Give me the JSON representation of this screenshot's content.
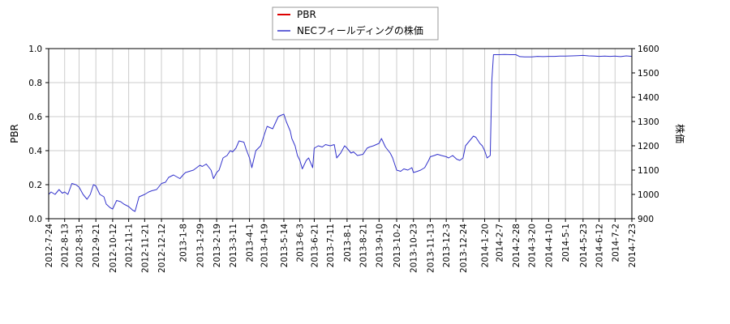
{
  "chart_data": {
    "type": "line",
    "legend": {
      "placement": "top-center",
      "entries": [
        {
          "label": "PBR",
          "color": "#dd0000"
        },
        {
          "label": "NECフィールディングの株価",
          "color": "#3333cc"
        }
      ]
    },
    "y_left": {
      "label": "PBR",
      "range": [
        0.0,
        1.0
      ],
      "ticks": [
        "0.0",
        "0.2",
        "0.4",
        "0.6",
        "0.8",
        "1.0"
      ]
    },
    "y_right": {
      "label": "株価",
      "range": [
        900,
        1600
      ],
      "ticks": [
        "900",
        "1000",
        "1100",
        "1200",
        "1300",
        "1400",
        "1500",
        "1600"
      ]
    },
    "x": {
      "range": [
        "2012-07-24",
        "2014-07-23"
      ],
      "ticks": [
        "2012-7-24",
        "2012-8-13",
        "2012-8-31",
        "2012-9-21",
        "2012-10-12",
        "2012-11-1",
        "2012-11-21",
        "2012-12-12",
        "2013-1-8",
        "2013-1-29",
        "2013-2-19",
        "2013-3-11",
        "2013-4-1",
        "2013-4-19",
        "2013-5-14",
        "2013-6-3",
        "2013-6-21",
        "2013-7-11",
        "2013-8-1",
        "2013-8-21",
        "2013-9-10",
        "2013-10-2",
        "2013-10-23",
        "2013-11-13",
        "2013-12-3",
        "2013-12-24",
        "2014-1-20",
        "2014-2-7",
        "2014-2-28",
        "2014-3-20",
        "2014-4-10",
        "2014-5-1",
        "2014-5-23",
        "2014-6-12",
        "2014-7-2",
        "2014-7-23"
      ]
    },
    "grid": true,
    "series": [
      {
        "name": "PBR",
        "axis": "left",
        "color": "#dd0000",
        "values": []
      },
      {
        "name": "NECフィールディングの株価",
        "axis": "right",
        "color": "#3333cc",
        "points": [
          [
            "2012-07-24",
            1000
          ],
          [
            "2012-07-27",
            1010
          ],
          [
            "2012-08-01",
            1000
          ],
          [
            "2012-08-06",
            1020
          ],
          [
            "2012-08-10",
            1005
          ],
          [
            "2012-08-13",
            1010
          ],
          [
            "2012-08-17",
            1000
          ],
          [
            "2012-08-22",
            1045
          ],
          [
            "2012-08-27",
            1040
          ],
          [
            "2012-08-31",
            1030
          ],
          [
            "2012-09-05",
            1000
          ],
          [
            "2012-09-10",
            980
          ],
          [
            "2012-09-14",
            1000
          ],
          [
            "2012-09-18",
            1040
          ],
          [
            "2012-09-21",
            1035
          ],
          [
            "2012-09-26",
            1000
          ],
          [
            "2012-10-01",
            990
          ],
          [
            "2012-10-04",
            960
          ],
          [
            "2012-10-09",
            945
          ],
          [
            "2012-10-12",
            940
          ],
          [
            "2012-10-17",
            975
          ],
          [
            "2012-10-22",
            970
          ],
          [
            "2012-10-26",
            960
          ],
          [
            "2012-11-01",
            950
          ],
          [
            "2012-11-06",
            935
          ],
          [
            "2012-11-09",
            930
          ],
          [
            "2012-11-14",
            990
          ],
          [
            "2012-11-21",
            1000
          ],
          [
            "2012-11-26",
            1010
          ],
          [
            "2012-11-30",
            1015
          ],
          [
            "2012-12-06",
            1020
          ],
          [
            "2012-12-12",
            1045
          ],
          [
            "2012-12-17",
            1050
          ],
          [
            "2012-12-21",
            1070
          ],
          [
            "2012-12-27",
            1080
          ],
          [
            "2013-01-04",
            1065
          ],
          [
            "2013-01-08",
            1080
          ],
          [
            "2013-01-11",
            1090
          ],
          [
            "2013-01-16",
            1095
          ],
          [
            "2013-01-21",
            1100
          ],
          [
            "2013-01-25",
            1110
          ],
          [
            "2013-01-29",
            1120
          ],
          [
            "2013-02-01",
            1115
          ],
          [
            "2013-02-06",
            1125
          ],
          [
            "2013-02-12",
            1100
          ],
          [
            "2013-02-15",
            1065
          ],
          [
            "2013-02-19",
            1090
          ],
          [
            "2013-02-22",
            1100
          ],
          [
            "2013-02-27",
            1150
          ],
          [
            "2013-03-04",
            1160
          ],
          [
            "2013-03-08",
            1180
          ],
          [
            "2013-03-11",
            1175
          ],
          [
            "2013-03-15",
            1190
          ],
          [
            "2013-03-19",
            1220
          ],
          [
            "2013-03-25",
            1215
          ],
          [
            "2013-03-28",
            1185
          ],
          [
            "2013-04-01",
            1150
          ],
          [
            "2013-04-04",
            1110
          ],
          [
            "2013-04-09",
            1180
          ],
          [
            "2013-04-15",
            1200
          ],
          [
            "2013-04-19",
            1240
          ],
          [
            "2013-04-23",
            1280
          ],
          [
            "2013-04-30",
            1270
          ],
          [
            "2013-05-07",
            1320
          ],
          [
            "2013-05-10",
            1325
          ],
          [
            "2013-05-14",
            1330
          ],
          [
            "2013-05-17",
            1300
          ],
          [
            "2013-05-22",
            1260
          ],
          [
            "2013-05-24",
            1230
          ],
          [
            "2013-05-28",
            1200
          ],
          [
            "2013-05-31",
            1160
          ],
          [
            "2013-06-03",
            1140
          ],
          [
            "2013-06-06",
            1105
          ],
          [
            "2013-06-11",
            1140
          ],
          [
            "2013-06-14",
            1150
          ],
          [
            "2013-06-19",
            1110
          ],
          [
            "2013-06-21",
            1190
          ],
          [
            "2013-06-26",
            1200
          ],
          [
            "2013-07-01",
            1195
          ],
          [
            "2013-07-05",
            1205
          ],
          [
            "2013-07-11",
            1200
          ],
          [
            "2013-07-16",
            1205
          ],
          [
            "2013-07-19",
            1150
          ],
          [
            "2013-07-24",
            1170
          ],
          [
            "2013-07-29",
            1200
          ],
          [
            "2013-08-01",
            1190
          ],
          [
            "2013-08-06",
            1170
          ],
          [
            "2013-08-09",
            1175
          ],
          [
            "2013-08-14",
            1160
          ],
          [
            "2013-08-21",
            1165
          ],
          [
            "2013-08-26",
            1190
          ],
          [
            "2013-08-29",
            1195
          ],
          [
            "2013-09-03",
            1200
          ],
          [
            "2013-09-10",
            1210
          ],
          [
            "2013-09-13",
            1230
          ],
          [
            "2013-09-18",
            1195
          ],
          [
            "2013-09-24",
            1170
          ],
          [
            "2013-09-27",
            1150
          ],
          [
            "2013-10-02",
            1100
          ],
          [
            "2013-10-07",
            1095
          ],
          [
            "2013-10-11",
            1105
          ],
          [
            "2013-10-16",
            1100
          ],
          [
            "2013-10-21",
            1110
          ],
          [
            "2013-10-23",
            1090
          ],
          [
            "2013-10-28",
            1095
          ],
          [
            "2013-11-01",
            1100
          ],
          [
            "2013-11-06",
            1110
          ],
          [
            "2013-11-11",
            1140
          ],
          [
            "2013-11-13",
            1155
          ],
          [
            "2013-11-18",
            1160
          ],
          [
            "2013-11-22",
            1165
          ],
          [
            "2013-11-27",
            1160
          ],
          [
            "2013-12-03",
            1155
          ],
          [
            "2013-12-06",
            1150
          ],
          [
            "2013-12-11",
            1160
          ],
          [
            "2013-12-16",
            1145
          ],
          [
            "2013-12-20",
            1140
          ],
          [
            "2013-12-24",
            1150
          ],
          [
            "2013-12-27",
            1200
          ],
          [
            "2014-01-06",
            1240
          ],
          [
            "2014-01-09",
            1235
          ],
          [
            "2014-01-14",
            1210
          ],
          [
            "2014-01-17",
            1200
          ],
          [
            "2014-01-20",
            1180
          ],
          [
            "2014-01-23",
            1150
          ],
          [
            "2014-01-27",
            1160
          ],
          [
            "2014-01-29",
            1470
          ],
          [
            "2014-01-31",
            1575
          ],
          [
            "2014-02-07",
            1575
          ],
          [
            "2014-02-14",
            1576
          ],
          [
            "2014-02-21",
            1575
          ],
          [
            "2014-02-28",
            1575
          ],
          [
            "2014-03-05",
            1567
          ],
          [
            "2014-03-11",
            1566
          ],
          [
            "2014-03-20",
            1566
          ],
          [
            "2014-03-27",
            1568
          ],
          [
            "2014-04-03",
            1567
          ],
          [
            "2014-04-10",
            1568
          ],
          [
            "2014-04-17",
            1568
          ],
          [
            "2014-04-24",
            1569
          ],
          [
            "2014-05-01",
            1569
          ],
          [
            "2014-05-09",
            1570
          ],
          [
            "2014-05-16",
            1571
          ],
          [
            "2014-05-23",
            1572
          ],
          [
            "2014-05-30",
            1570
          ],
          [
            "2014-06-06",
            1569
          ],
          [
            "2014-06-12",
            1568
          ],
          [
            "2014-06-19",
            1569
          ],
          [
            "2014-06-26",
            1568
          ],
          [
            "2014-07-02",
            1569
          ],
          [
            "2014-07-09",
            1567
          ],
          [
            "2014-07-16",
            1570
          ],
          [
            "2014-07-23",
            1568
          ]
        ]
      }
    ]
  }
}
